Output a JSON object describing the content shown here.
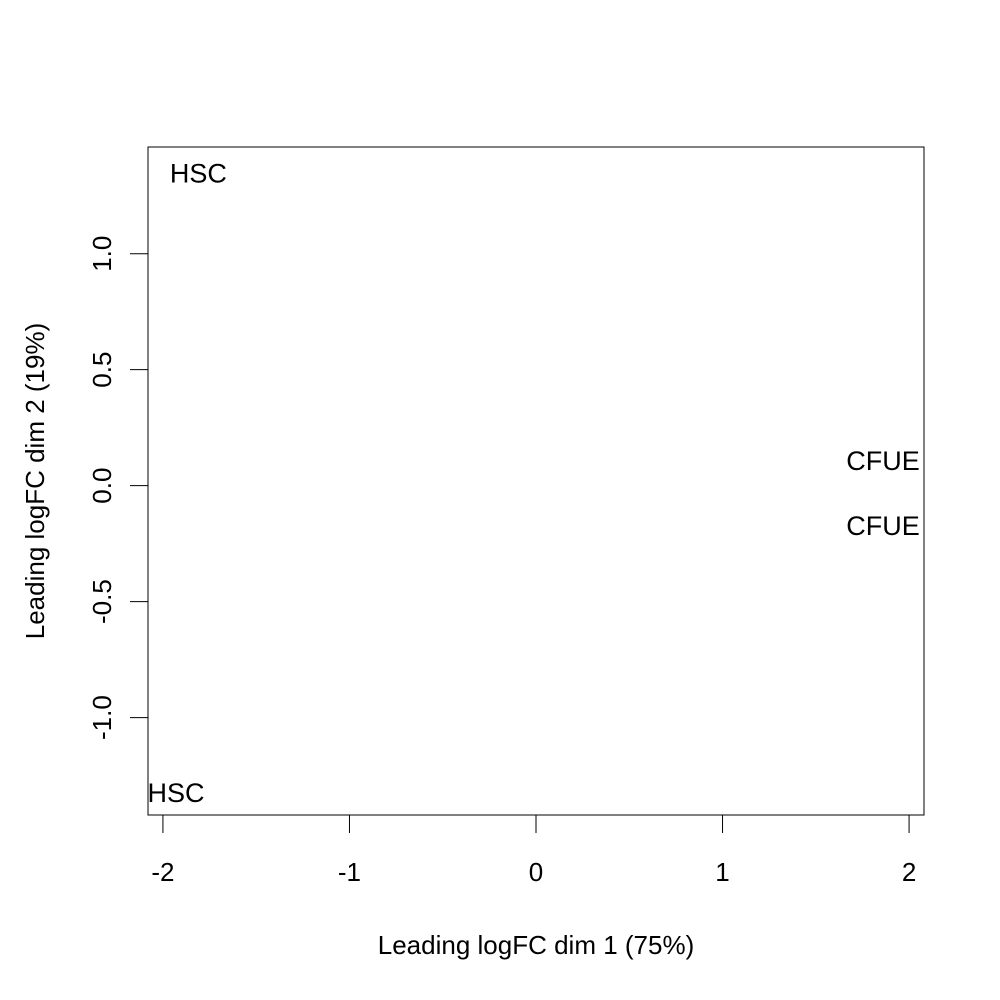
{
  "chart_data": {
    "type": "scatter",
    "title": "",
    "xlabel": "Leading logFC dim 1 (75%)",
    "ylabel": "Leading logFC dim 2 (19%)",
    "xlim": [
      -2.08,
      2.08
    ],
    "ylim": [
      -1.42,
      1.46
    ],
    "xticks": [
      -2,
      -1,
      0,
      1,
      2
    ],
    "xtick_labels": [
      "-2",
      "-1",
      "0",
      "1",
      "2"
    ],
    "yticks": [
      -1.0,
      -0.5,
      0.0,
      0.5,
      1.0
    ],
    "ytick_labels": [
      "-1.0",
      "-0.5",
      "0.0",
      "0.5",
      "1.0"
    ],
    "grid": false,
    "points": [
      {
        "label": "HSC",
        "x": -1.81,
        "y": 1.35
      },
      {
        "label": "HSC",
        "x": -1.93,
        "y": -1.32
      },
      {
        "label": "CFUE",
        "x": 1.86,
        "y": 0.11
      },
      {
        "label": "CFUE",
        "x": 1.86,
        "y": -0.17
      }
    ]
  }
}
